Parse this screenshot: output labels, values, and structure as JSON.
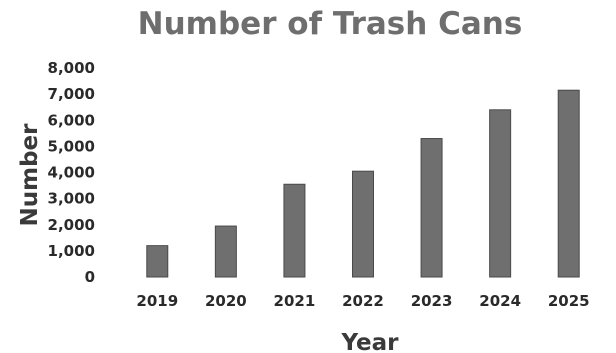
{
  "chart_data": {
    "type": "bar",
    "title": "Number of Trash Cans",
    "xlabel": "Year",
    "ylabel": "Number",
    "categories": [
      "2019",
      "2020",
      "2021",
      "2022",
      "2023",
      "2024",
      "2025"
    ],
    "values": [
      1200,
      1950,
      3550,
      4050,
      5300,
      6400,
      7150
    ],
    "ylim": [
      0,
      8000
    ],
    "yticks": [
      "0",
      "1,000",
      "2,000",
      "3,000",
      "4,000",
      "5,000",
      "6,000",
      "7,000",
      "8,000"
    ],
    "grid": false,
    "legend": "none",
    "bar_color": "#6f6f6f"
  }
}
